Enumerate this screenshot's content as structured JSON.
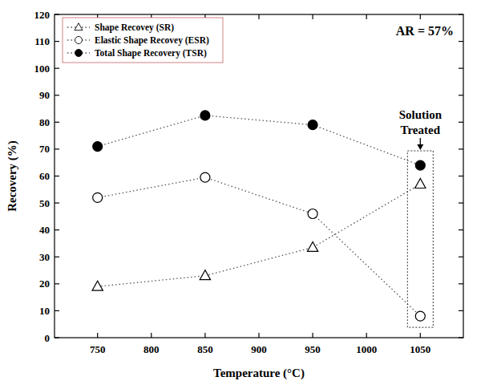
{
  "chart_data": {
    "type": "line",
    "x_label": "Temperature (°C)",
    "y_label": "Recovery (%)",
    "x": [
      750,
      850,
      950,
      1050
    ],
    "series": [
      {
        "name": "Shape Recovey (SR)",
        "color": "#000000",
        "marker": "open-triangle",
        "line_style": "dotted",
        "values": [
          19,
          23,
          33.5,
          57
        ]
      },
      {
        "name": "Elastic Shape Recovey (ESR)",
        "color": "#000000",
        "marker": "open-circle",
        "line_style": "dotted",
        "values": [
          52,
          59.5,
          46,
          8
        ]
      },
      {
        "name": "Total Shape Recovery (TSR)",
        "color": "#000000",
        "marker": "filled-circle",
        "line_style": "dotted",
        "values": [
          71,
          82.5,
          79,
          64
        ]
      }
    ],
    "xlim": [
      710,
      1090
    ],
    "xticks": [
      750,
      800,
      850,
      900,
      950,
      1000,
      1050
    ],
    "ylim": [
      0,
      120
    ],
    "yticks": [
      0,
      10,
      20,
      30,
      40,
      50,
      60,
      70,
      80,
      90,
      100,
      110,
      120
    ],
    "grid": false,
    "legend": "upper left",
    "annotations": [
      {
        "text": "AR = 57%"
      },
      {
        "text": "Solution Treated",
        "x": 1050
      }
    ]
  }
}
